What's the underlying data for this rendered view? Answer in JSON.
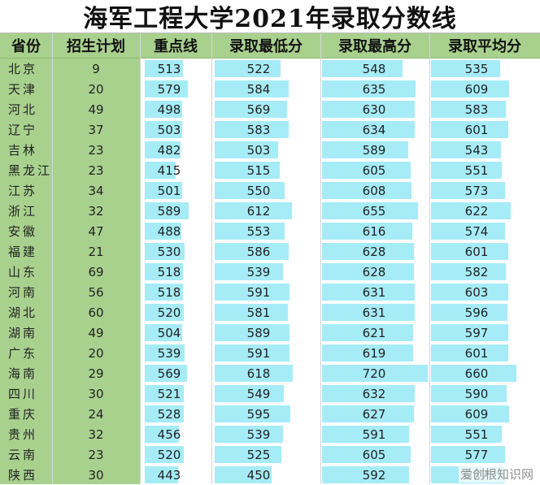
{
  "title": "海军工程大学2021年录取分数线",
  "headers": [
    "省份",
    "招生计划",
    "重点线",
    "录取最低分",
    "录取最高分",
    "录取平均分"
  ],
  "bar_color": "#a6ecf7",
  "header_color": "#a9d18e",
  "scale_max": 720,
  "rows": [
    {
      "province": "北京",
      "plan": "9",
      "key_line": "513",
      "min": "522",
      "max": "548",
      "avg": "535"
    },
    {
      "province": "天津",
      "plan": "20",
      "key_line": "579",
      "min": "584",
      "max": "635",
      "avg": "609"
    },
    {
      "province": "河北",
      "plan": "49",
      "key_line": "498",
      "min": "569",
      "max": "630",
      "avg": "583"
    },
    {
      "province": "辽宁",
      "plan": "37",
      "key_line": "503",
      "min": "583",
      "max": "634",
      "avg": "601"
    },
    {
      "province": "吉林",
      "plan": "23",
      "key_line": "482",
      "min": "503",
      "max": "589",
      "avg": "543"
    },
    {
      "province": "黑龙江",
      "plan": "23",
      "key_line": "415",
      "min": "515",
      "max": "605",
      "avg": "551"
    },
    {
      "province": "江苏",
      "plan": "34",
      "key_line": "501",
      "min": "550",
      "max": "608",
      "avg": "573"
    },
    {
      "province": "浙江",
      "plan": "32",
      "key_line": "589",
      "min": "612",
      "max": "655",
      "avg": "622"
    },
    {
      "province": "安徽",
      "plan": "47",
      "key_line": "488",
      "min": "553",
      "max": "616",
      "avg": "574"
    },
    {
      "province": "福建",
      "plan": "21",
      "key_line": "530",
      "min": "586",
      "max": "628",
      "avg": "601"
    },
    {
      "province": "山东",
      "plan": "69",
      "key_line": "518",
      "min": "539",
      "max": "628",
      "avg": "582"
    },
    {
      "province": "河南",
      "plan": "56",
      "key_line": "518",
      "min": "591",
      "max": "631",
      "avg": "603"
    },
    {
      "province": "湖北",
      "plan": "60",
      "key_line": "520",
      "min": "581",
      "max": "631",
      "avg": "596"
    },
    {
      "province": "湖南",
      "plan": "49",
      "key_line": "504",
      "min": "589",
      "max": "621",
      "avg": "597"
    },
    {
      "province": "广东",
      "plan": "20",
      "key_line": "539",
      "min": "591",
      "max": "619",
      "avg": "601"
    },
    {
      "province": "海南",
      "plan": "29",
      "key_line": "569",
      "min": "618",
      "max": "720",
      "avg": "660"
    },
    {
      "province": "四川",
      "plan": "30",
      "key_line": "521",
      "min": "549",
      "max": "632",
      "avg": "590"
    },
    {
      "province": "重庆",
      "plan": "24",
      "key_line": "528",
      "min": "595",
      "max": "627",
      "avg": "609"
    },
    {
      "province": "贵州",
      "plan": "32",
      "key_line": "456",
      "min": "539",
      "max": "591",
      "avg": "551"
    },
    {
      "province": "云南",
      "plan": "23",
      "key_line": "520",
      "min": "525",
      "max": "605",
      "avg": "577"
    },
    {
      "province": "陕西",
      "plan": "30",
      "key_line": "443",
      "min": "450",
      "max": "592",
      "avg": "577"
    }
  ],
  "watermark": "爱创根知识网"
}
